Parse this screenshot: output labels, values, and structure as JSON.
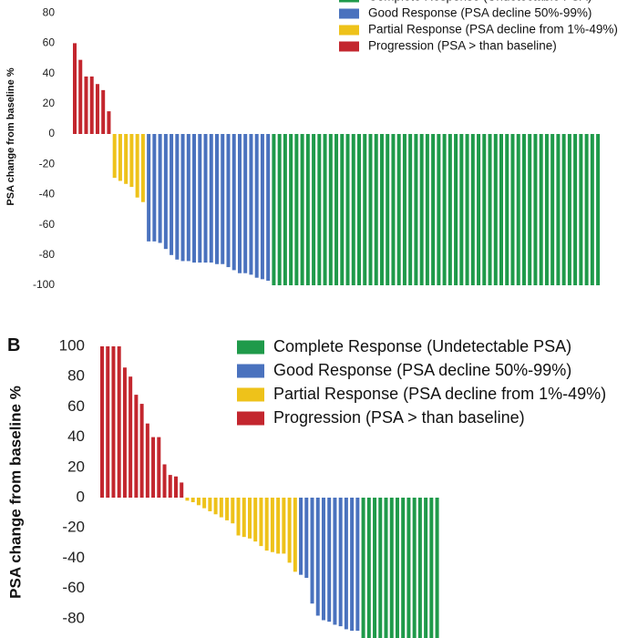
{
  "colors": {
    "complete": "#1f9a4a",
    "good": "#4a72be",
    "partial": "#eec21a",
    "progression": "#c3262e"
  },
  "chart_data": [
    {
      "panel_label": "",
      "type": "bar",
      "ylabel": "PSA change from baseline %",
      "ylim": [
        -100,
        80
      ],
      "yticks": [
        80,
        60,
        40,
        20,
        0,
        -20,
        -40,
        -60,
        -80,
        -100
      ],
      "legend": [
        {
          "key": "complete",
          "label": "Complete Response (Undetectable PSA)"
        },
        {
          "key": "good",
          "label": "Good Response (PSA decline 50%-99%)"
        },
        {
          "key": "partial",
          "label": "Partial Response (PSA decline from 1%-49%)"
        },
        {
          "key": "progression",
          "label": "Progression (PSA > than baseline)"
        }
      ],
      "legend_position": "top-right",
      "series": [
        {
          "key": "progression",
          "values": [
            60,
            49,
            38,
            38,
            33,
            29,
            15
          ]
        },
        {
          "key": "partial",
          "values": [
            -29,
            -31,
            -33,
            -35,
            -42,
            -45
          ]
        },
        {
          "key": "good",
          "values": [
            -71,
            -71,
            -72,
            -76,
            -80,
            -83,
            -84,
            -84,
            -85,
            -85,
            -85,
            -85,
            -86,
            -86,
            -88,
            -90,
            -92,
            -92,
            -93,
            -95,
            -96,
            -97
          ]
        },
        {
          "key": "complete",
          "values": [
            -100,
            -100,
            -100,
            -100,
            -100,
            -100,
            -100,
            -100,
            -100,
            -100,
            -100,
            -100,
            -100,
            -100,
            -100,
            -100,
            -100,
            -100,
            -100,
            -100,
            -100,
            -100,
            -100,
            -100,
            -100,
            -100,
            -100,
            -100,
            -100,
            -100,
            -100,
            -100,
            -100,
            -100,
            -100,
            -100,
            -100,
            -100,
            -100,
            -100,
            -100,
            -100,
            -100,
            -100,
            -100,
            -100,
            -100,
            -100,
            -100,
            -100,
            -100,
            -100,
            -100,
            -100,
            -100,
            -100,
            -100,
            -100
          ]
        }
      ]
    },
    {
      "panel_label": "B",
      "type": "bar",
      "ylabel": "PSA change from baseline %",
      "ylim": [
        -100,
        100
      ],
      "yticks": [
        100,
        80,
        60,
        40,
        20,
        0,
        -20,
        -40,
        -60,
        -80
      ],
      "legend": [
        {
          "key": "complete",
          "label": "Complete Response (Undetectable PSA)"
        },
        {
          "key": "good",
          "label": "Good Response (PSA decline 50%-99%)"
        },
        {
          "key": "partial",
          "label": "Partial Response (PSA decline from 1%-49%)"
        },
        {
          "key": "progression",
          "label": "Progression (PSA > than baseline)"
        }
      ],
      "legend_position": "top-right",
      "series": [
        {
          "key": "progression",
          "values": [
            100,
            100,
            100,
            100,
            86,
            80,
            68,
            62,
            49,
            40,
            40,
            22,
            15,
            14,
            10
          ]
        },
        {
          "key": "partial",
          "values": [
            -2,
            -3,
            -5,
            -7,
            -9,
            -11,
            -13,
            -15,
            -17,
            -25,
            -26,
            -27,
            -29,
            -32,
            -35,
            -36,
            -37,
            -37,
            -43,
            -49
          ]
        },
        {
          "key": "good",
          "values": [
            -51,
            -53,
            -70,
            -78,
            -81,
            -82,
            -84,
            -85,
            -87,
            -88,
            -88
          ]
        },
        {
          "key": "complete",
          "values": [
            -100,
            -100,
            -100,
            -100,
            -100,
            -100,
            -100,
            -100,
            -100,
            -100,
            -100,
            -100,
            -100,
            -100
          ]
        }
      ]
    }
  ]
}
